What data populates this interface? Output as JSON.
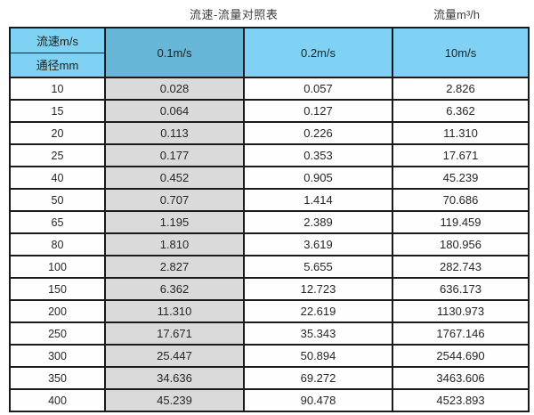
{
  "page": {
    "title": "流速-流量对照表",
    "unit_label": "流量m³/h"
  },
  "table": {
    "header": {
      "corner_top": "流速m/s",
      "corner_bottom": "通径mm",
      "columns": [
        "0.1m/s",
        "0.2m/s",
        "10m/s"
      ]
    },
    "rows": [
      [
        "10",
        "0.028",
        "0.057",
        "2.826"
      ],
      [
        "15",
        "0.064",
        "0.127",
        "6.362"
      ],
      [
        "20",
        "0.113",
        "0.226",
        "11.310"
      ],
      [
        "25",
        "0.177",
        "0.353",
        "17.671"
      ],
      [
        "40",
        "0.452",
        "0.905",
        "45.239"
      ],
      [
        "50",
        "0.707",
        "1.414",
        "70.686"
      ],
      [
        "65",
        "1.195",
        "2.389",
        "119.459"
      ],
      [
        "80",
        "1.810",
        "3.619",
        "180.956"
      ],
      [
        "100",
        "2.827",
        "5.655",
        "282.743"
      ],
      [
        "150",
        "6.362",
        "12.723",
        "636.173"
      ],
      [
        "200",
        "11.310",
        "22.619",
        "1130.973"
      ],
      [
        "250",
        "17.671",
        "35.343",
        "1767.146"
      ],
      [
        "300",
        "25.447",
        "50.894",
        "2544.690"
      ],
      [
        "350",
        "34.636",
        "69.272",
        "3463.606"
      ],
      [
        "400",
        "45.239",
        "90.478",
        "4523.893"
      ]
    ]
  },
  "colors": {
    "header-blue": "#7FD2F3",
    "accent-blue": "#66B6D7",
    "shaded-gray": "#DADADA",
    "cell-white": "#FEFEFE",
    "border": "#1A1A1A",
    "text": "#333333"
  }
}
